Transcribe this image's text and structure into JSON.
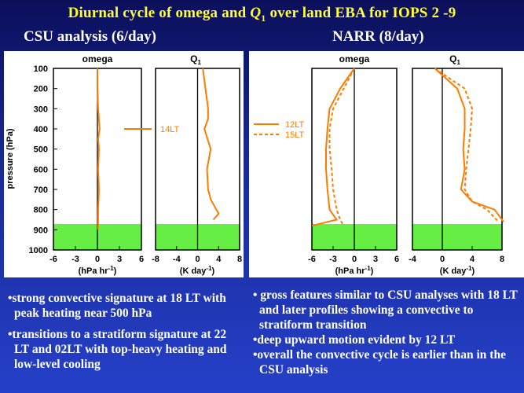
{
  "title": {
    "prefix": "Diurnal cycle of omega and ",
    "q": "Q",
    "q_sub": "1",
    "suffix": " over land EBA for IOPS 2 -9"
  },
  "left": {
    "subtitle": "CSU analysis (6/day)",
    "omega_title": "omega",
    "q_title": "Q",
    "q_title_sub": "1",
    "ylabel": "pressure (hPa)",
    "yticks": [
      "100",
      "200",
      "300",
      "400",
      "500",
      "600",
      "700",
      "800",
      "900",
      "1000"
    ],
    "omega_xticks": [
      "-6",
      "-3",
      "0",
      "3",
      "6"
    ],
    "q_xticks": [
      "-8",
      "-4",
      "0",
      "4",
      "8"
    ],
    "omega_units": "(hPa hr",
    "q_units": "(K day",
    "unit_exp": "-1",
    "legend_label": "14LT"
  },
  "right": {
    "subtitle": "NARR (8/day)",
    "omega_title": "omega",
    "q_title": "Q",
    "q_title_sub": "1",
    "omega_xticks": [
      "-6",
      "-3",
      "0",
      "3",
      "6"
    ],
    "q_xticks": [
      "-4",
      "0",
      "4",
      "8"
    ],
    "omega_units": "(hPa hr",
    "q_units": "(K day",
    "unit_exp": "-1",
    "legend_solid": "12LT",
    "legend_dashed": "15LT"
  },
  "bullets_left": [
    "•strong convective signature at 18 LT  with peak heating near 500 hPa",
    "•transitions to a stratiform signature at 22 LT and 02LT with top-heavy heating and low-level cooling"
  ],
  "bullets_right": [
    "•  gross features similar to CSU analyses with 18 LT and later profiles showing a convective to stratiform transition",
    "•deep upward motion evident by 12 LT",
    "•overall the convective cycle is earlier than in the CSU analysis"
  ],
  "chart_data": [
    {
      "type": "line",
      "title": "omega (CSU, 14LT)",
      "xlabel": "hPa hr-1",
      "ylabel": "pressure (hPa)",
      "xlim": [
        -6,
        6
      ],
      "ylim": [
        1000,
        100
      ],
      "series": [
        {
          "name": "14LT",
          "x": [
            0,
            0,
            0.1,
            0.3,
            0.1,
            0.2,
            0.1,
            0.2,
            0.1,
            0.1,
            0.1
          ],
          "y": [
            100,
            200,
            300,
            400,
            450,
            500,
            600,
            700,
            800,
            850,
            900
          ]
        }
      ]
    },
    {
      "type": "line",
      "title": "Q1 (CSU, 14LT)",
      "xlabel": "K day-1",
      "ylabel": "pressure (hPa)",
      "xlim": [
        -8,
        8
      ],
      "ylim": [
        1000,
        100
      ],
      "series": [
        {
          "name": "14LT",
          "x": [
            1,
            1.5,
            2,
            2,
            1.3,
            2.5,
            1.8,
            2,
            2.5,
            4,
            3
          ],
          "y": [
            100,
            200,
            300,
            350,
            400,
            500,
            600,
            700,
            750,
            820,
            850
          ]
        }
      ]
    },
    {
      "type": "line",
      "title": "omega (NARR)",
      "xlabel": "hPa hr-1",
      "ylabel": "pressure (hPa)",
      "xlim": [
        -6,
        6
      ],
      "ylim": [
        1000,
        100
      ],
      "series": [
        {
          "name": "12LT",
          "x": [
            0,
            -2,
            -3.5,
            -3.8,
            -4,
            -4,
            -3.8,
            -3.5,
            -2.5,
            -6
          ],
          "y": [
            100,
            200,
            300,
            400,
            500,
            600,
            700,
            800,
            850,
            880
          ]
        },
        {
          "name": "15LT",
          "x": [
            0,
            -1.5,
            -3,
            -3.5,
            -3.5,
            -3.2,
            -3,
            -2.5,
            -2,
            -1.5
          ],
          "y": [
            100,
            200,
            300,
            400,
            500,
            600,
            700,
            800,
            850,
            880
          ]
        }
      ]
    },
    {
      "type": "line",
      "title": "Q1 (NARR)",
      "xlabel": "K day-1",
      "ylabel": "pressure (hPa)",
      "xlim": [
        -4,
        8
      ],
      "ylim": [
        1000,
        100
      ],
      "series": [
        {
          "name": "12LT",
          "x": [
            -1,
            2,
            3,
            3,
            2.8,
            3,
            2.5,
            4,
            7,
            8.2
          ],
          "y": [
            100,
            200,
            300,
            400,
            500,
            600,
            700,
            760,
            800,
            860
          ]
        },
        {
          "name": "15LT",
          "x": [
            -1,
            3,
            4,
            3.8,
            3.5,
            3.2,
            3,
            4,
            6,
            7.5
          ],
          "y": [
            100,
            200,
            300,
            400,
            500,
            600,
            700,
            760,
            800,
            860
          ]
        }
      ]
    }
  ]
}
